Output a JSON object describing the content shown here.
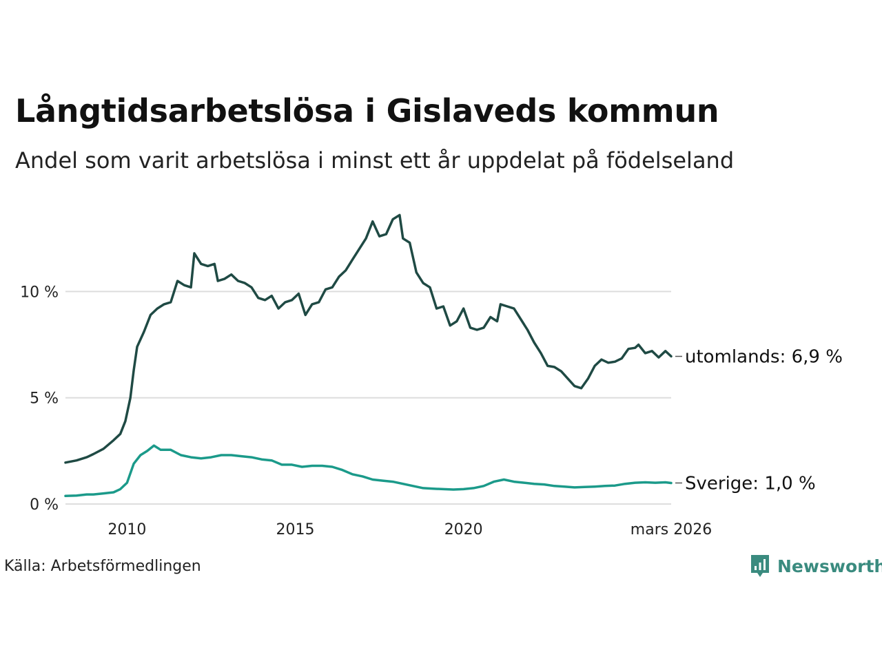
{
  "header": {
    "title": "Långtidsarbetslösa i Gislaveds kommun",
    "subtitle": "Andel som varit arbetslösa i minst ett år uppdelat på födelseland"
  },
  "footer": {
    "source": "Källa: Arbetsförmedlingen",
    "brand": "Newsworthy"
  },
  "colors": {
    "foreign": "#1f4a44",
    "sweden": "#1b9a8a",
    "grid": "#dddddd",
    "brand": "#3a8b7f"
  },
  "chart_data": {
    "type": "line",
    "title": "Långtidsarbetslösa i Gislaveds kommun",
    "subtitle": "Andel som varit arbetslösa i minst ett år uppdelat på födelseland",
    "xlabel": "",
    "ylabel": "",
    "xlim": [
      2008.17,
      2026.17
    ],
    "ylim": [
      0,
      14
    ],
    "grid": true,
    "y_ticks": [
      {
        "value": 0,
        "label": "0 %"
      },
      {
        "value": 5,
        "label": "5 %"
      },
      {
        "value": 10,
        "label": "10 %"
      }
    ],
    "x_ticks": [
      {
        "value": 2010,
        "label": "2010"
      },
      {
        "value": 2015,
        "label": "2015"
      },
      {
        "value": 2020,
        "label": "2020"
      },
      {
        "value": 2026.17,
        "label": "mars 2026"
      }
    ],
    "series": [
      {
        "name": "utomlands",
        "end_label": "utomlands: 6,9 %",
        "color": "#1f4a44",
        "points": [
          [
            2008.17,
            1.95
          ],
          [
            2008.5,
            2.05
          ],
          [
            2008.8,
            2.2
          ],
          [
            2009.0,
            2.35
          ],
          [
            2009.3,
            2.6
          ],
          [
            2009.6,
            3.0
          ],
          [
            2009.8,
            3.3
          ],
          [
            2009.95,
            3.9
          ],
          [
            2010.1,
            5.0
          ],
          [
            2010.2,
            6.3
          ],
          [
            2010.3,
            7.4
          ],
          [
            2010.5,
            8.1
          ],
          [
            2010.7,
            8.9
          ],
          [
            2010.9,
            9.2
          ],
          [
            2011.1,
            9.4
          ],
          [
            2011.3,
            9.5
          ],
          [
            2011.5,
            10.5
          ],
          [
            2011.7,
            10.3
          ],
          [
            2011.9,
            10.2
          ],
          [
            2012.0,
            11.8
          ],
          [
            2012.2,
            11.3
          ],
          [
            2012.4,
            11.2
          ],
          [
            2012.6,
            11.3
          ],
          [
            2012.7,
            10.5
          ],
          [
            2012.9,
            10.6
          ],
          [
            2013.1,
            10.8
          ],
          [
            2013.3,
            10.5
          ],
          [
            2013.5,
            10.4
          ],
          [
            2013.7,
            10.2
          ],
          [
            2013.9,
            9.7
          ],
          [
            2014.1,
            9.6
          ],
          [
            2014.3,
            9.8
          ],
          [
            2014.5,
            9.2
          ],
          [
            2014.7,
            9.5
          ],
          [
            2014.9,
            9.6
          ],
          [
            2015.1,
            9.9
          ],
          [
            2015.3,
            8.9
          ],
          [
            2015.5,
            9.4
          ],
          [
            2015.7,
            9.5
          ],
          [
            2015.9,
            10.1
          ],
          [
            2016.1,
            10.2
          ],
          [
            2016.3,
            10.7
          ],
          [
            2016.5,
            11.0
          ],
          [
            2016.7,
            11.5
          ],
          [
            2016.9,
            12.0
          ],
          [
            2017.1,
            12.5
          ],
          [
            2017.3,
            13.3
          ],
          [
            2017.5,
            12.6
          ],
          [
            2017.7,
            12.7
          ],
          [
            2017.9,
            13.4
          ],
          [
            2018.1,
            13.6
          ],
          [
            2018.2,
            12.5
          ],
          [
            2018.4,
            12.3
          ],
          [
            2018.6,
            10.9
          ],
          [
            2018.8,
            10.4
          ],
          [
            2019.0,
            10.2
          ],
          [
            2019.2,
            9.2
          ],
          [
            2019.4,
            9.3
          ],
          [
            2019.6,
            8.4
          ],
          [
            2019.8,
            8.6
          ],
          [
            2020.0,
            9.2
          ],
          [
            2020.2,
            8.3
          ],
          [
            2020.4,
            8.2
          ],
          [
            2020.6,
            8.3
          ],
          [
            2020.8,
            8.8
          ],
          [
            2021.0,
            8.6
          ],
          [
            2021.1,
            9.4
          ],
          [
            2021.3,
            9.3
          ],
          [
            2021.5,
            9.2
          ],
          [
            2021.7,
            8.7
          ],
          [
            2021.9,
            8.2
          ],
          [
            2022.1,
            7.6
          ],
          [
            2022.3,
            7.1
          ],
          [
            2022.5,
            6.5
          ],
          [
            2022.7,
            6.45
          ],
          [
            2022.9,
            6.25
          ],
          [
            2023.1,
            5.9
          ],
          [
            2023.3,
            5.55
          ],
          [
            2023.5,
            5.45
          ],
          [
            2023.7,
            5.9
          ],
          [
            2023.9,
            6.5
          ],
          [
            2024.1,
            6.8
          ],
          [
            2024.3,
            6.65
          ],
          [
            2024.5,
            6.7
          ],
          [
            2024.7,
            6.85
          ],
          [
            2024.9,
            7.3
          ],
          [
            2025.1,
            7.35
          ],
          [
            2025.2,
            7.5
          ],
          [
            2025.4,
            7.1
          ],
          [
            2025.6,
            7.2
          ],
          [
            2025.8,
            6.9
          ],
          [
            2026.0,
            7.2
          ],
          [
            2026.17,
            6.95
          ]
        ]
      },
      {
        "name": "Sverige",
        "end_label": "Sverige: 1,0 %",
        "color": "#1b9a8a",
        "points": [
          [
            2008.17,
            0.38
          ],
          [
            2008.5,
            0.4
          ],
          [
            2008.8,
            0.45
          ],
          [
            2009.0,
            0.45
          ],
          [
            2009.3,
            0.5
          ],
          [
            2009.6,
            0.55
          ],
          [
            2009.8,
            0.7
          ],
          [
            2010.0,
            1.0
          ],
          [
            2010.2,
            1.9
          ],
          [
            2010.4,
            2.3
          ],
          [
            2010.6,
            2.5
          ],
          [
            2010.8,
            2.75
          ],
          [
            2011.0,
            2.55
          ],
          [
            2011.3,
            2.55
          ],
          [
            2011.6,
            2.3
          ],
          [
            2011.9,
            2.2
          ],
          [
            2012.2,
            2.15
          ],
          [
            2012.5,
            2.2
          ],
          [
            2012.8,
            2.3
          ],
          [
            2013.1,
            2.3
          ],
          [
            2013.4,
            2.25
          ],
          [
            2013.7,
            2.2
          ],
          [
            2014.0,
            2.1
          ],
          [
            2014.3,
            2.05
          ],
          [
            2014.6,
            1.85
          ],
          [
            2014.9,
            1.85
          ],
          [
            2015.2,
            1.75
          ],
          [
            2015.5,
            1.8
          ],
          [
            2015.8,
            1.8
          ],
          [
            2016.1,
            1.75
          ],
          [
            2016.4,
            1.6
          ],
          [
            2016.7,
            1.4
          ],
          [
            2017.0,
            1.3
          ],
          [
            2017.3,
            1.15
          ],
          [
            2017.6,
            1.1
          ],
          [
            2017.9,
            1.05
          ],
          [
            2018.2,
            0.95
          ],
          [
            2018.5,
            0.85
          ],
          [
            2018.8,
            0.75
          ],
          [
            2019.1,
            0.72
          ],
          [
            2019.4,
            0.7
          ],
          [
            2019.7,
            0.68
          ],
          [
            2020.0,
            0.7
          ],
          [
            2020.3,
            0.75
          ],
          [
            2020.6,
            0.85
          ],
          [
            2020.9,
            1.05
          ],
          [
            2021.2,
            1.15
          ],
          [
            2021.5,
            1.05
          ],
          [
            2021.8,
            1.0
          ],
          [
            2022.1,
            0.95
          ],
          [
            2022.4,
            0.92
          ],
          [
            2022.7,
            0.85
          ],
          [
            2023.0,
            0.82
          ],
          [
            2023.3,
            0.78
          ],
          [
            2023.6,
            0.8
          ],
          [
            2023.9,
            0.82
          ],
          [
            2024.2,
            0.85
          ],
          [
            2024.5,
            0.87
          ],
          [
            2024.8,
            0.95
          ],
          [
            2025.1,
            1.0
          ],
          [
            2025.4,
            1.02
          ],
          [
            2025.7,
            1.0
          ],
          [
            2026.0,
            1.02
          ],
          [
            2026.17,
            0.99
          ]
        ]
      }
    ]
  }
}
